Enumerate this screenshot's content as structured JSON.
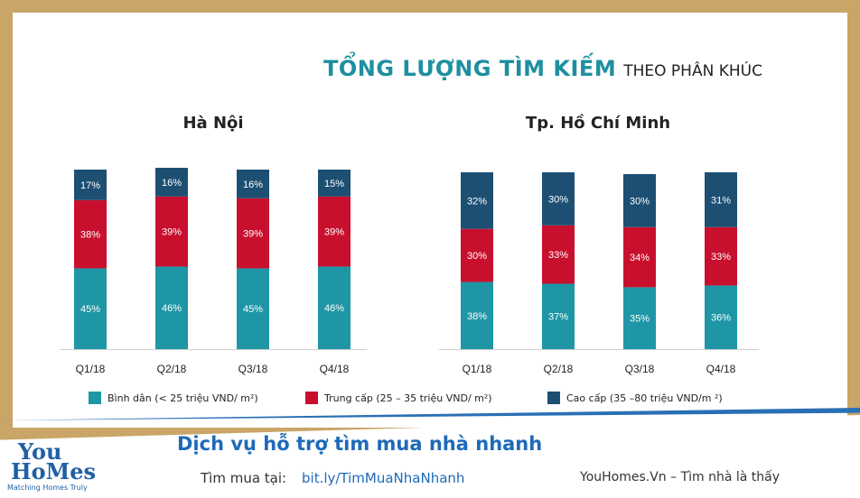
{
  "title": {
    "main": "TỔNG LƯỢNG TÌM KIẾM",
    "sub": "THEO PHÂN KHÚC"
  },
  "colors": {
    "binh_dan": "#1e96a6",
    "trung_cap": "#c8102e",
    "cao_cap": "#1d4f73",
    "brand_blue": "#1e6ab8",
    "gold_frame": "#c9a567"
  },
  "chart_data": [
    {
      "type": "bar",
      "stacked": true,
      "title": "Hà Nội",
      "categories": [
        "Q1/18",
        "Q2/18",
        "Q3/18",
        "Q4/18"
      ],
      "series": [
        {
          "name": "Bình dân  (< 25 triệu VND/  m²)",
          "values": [
            45,
            46,
            45,
            46
          ],
          "labels": [
            "45%",
            "46%",
            "45%",
            "46%"
          ]
        },
        {
          "name": "Trung cấp (25  – 35 triệu VND/  m²)",
          "values": [
            38,
            39,
            39,
            39
          ],
          "labels": [
            "38%",
            "39%",
            "39%",
            "39%"
          ]
        },
        {
          "name": "Cao cấp (35 –80 triệu VND/m  ²)",
          "values": [
            17,
            16,
            16,
            15
          ],
          "labels": [
            "17%",
            "16%",
            "16%",
            "15%"
          ]
        }
      ],
      "ylim": [
        0,
        100
      ]
    },
    {
      "type": "bar",
      "stacked": true,
      "title": "Tp. Hồ Chí Minh",
      "categories": [
        "Q1/18",
        "Q2/18",
        "Q3/18",
        "Q4/18"
      ],
      "series": [
        {
          "name": "Bình dân  (< 25 triệu VND/  m²)",
          "values": [
            38,
            37,
            35,
            36
          ],
          "labels": [
            "38%",
            "37%",
            "35%",
            "36%"
          ]
        },
        {
          "name": "Trung cấp (25  – 35 triệu VND/  m²)",
          "values": [
            30,
            33,
            34,
            33
          ],
          "labels": [
            "30%",
            "33%",
            "34%",
            "33%"
          ]
        },
        {
          "name": "Cao cấp (35 –80 triệu VND/m  ²)",
          "values": [
            32,
            30,
            30,
            31
          ],
          "labels": [
            "32%",
            "30%",
            "30%",
            "31%"
          ]
        }
      ],
      "ylim": [
        0,
        100
      ]
    }
  ],
  "legend": [
    {
      "label": "Bình dân  (< 25 triệu VND/  m²)"
    },
    {
      "label": "Trung cấp (25  – 35 triệu VND/  m²)"
    },
    {
      "label": "Cao cấp (35 –80 triệu VND/m  ²)"
    }
  ],
  "footer": {
    "logo_line1": "You",
    "logo_line2": "HoMes",
    "logo_tagline": "Matching Homes Truly",
    "cta": "Dịch vụ hỗ trợ tìm mua nhà nhanh",
    "find_label": "Tìm mua tại:",
    "find_link": "bit.ly/TimMuaNhaNhanh",
    "site": "YouHomes.Vn – Tìm nhà là thấy"
  }
}
